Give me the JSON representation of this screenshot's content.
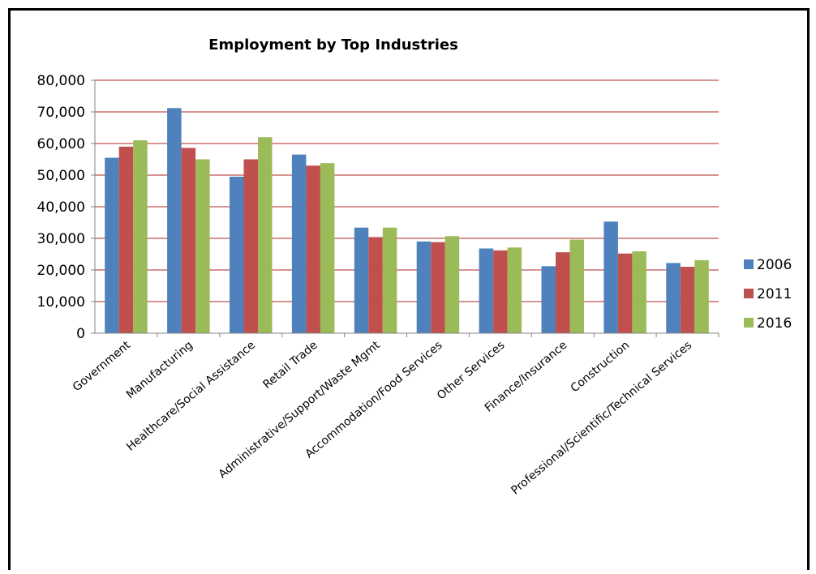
{
  "chart_data": {
    "type": "bar",
    "title": "Employment by Top Industries",
    "categories": [
      "Government",
      "Manufacturing",
      "Healthcare/Social Assistance",
      "Retail Trade",
      "Administrative/Support/Waste Mgmt",
      "Accommodation/Food Services",
      "Other Services",
      "Finance/Insurance",
      "Construction",
      "Professional/Scientific/Technical Services"
    ],
    "series": [
      {
        "name": "2006",
        "color": "#4F81BD",
        "values": [
          55500,
          71200,
          49500,
          56500,
          33400,
          29000,
          26800,
          21200,
          35300,
          22200
        ]
      },
      {
        "name": "2011",
        "color": "#C0504D",
        "values": [
          59000,
          58600,
          55000,
          53000,
          30400,
          28800,
          26200,
          25600,
          25200,
          21000
        ]
      },
      {
        "name": "2016",
        "color": "#9BBB59",
        "values": [
          61000,
          55000,
          62000,
          53800,
          33400,
          30700,
          27100,
          29600,
          25900,
          23100
        ]
      }
    ],
    "ylim": [
      0,
      80000
    ],
    "yticks": [
      0,
      10000,
      20000,
      30000,
      40000,
      50000,
      60000,
      70000,
      80000
    ],
    "ytick_labels": [
      "0",
      "10,000",
      "20,000",
      "30,000",
      "40,000",
      "50,000",
      "60,000",
      "70,000",
      "80,000"
    ],
    "gridline_color": "#C0504D",
    "grid": true,
    "legend": "right"
  }
}
